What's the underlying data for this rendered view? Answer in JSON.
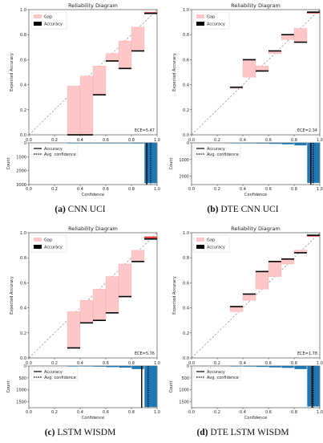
{
  "colors": {
    "gap": "#ffc7c7",
    "gap_edge": "#e99",
    "accuracy": "#000000",
    "count_bar": "#1f77b4",
    "over": "#e03c3c",
    "diag": "#777777"
  },
  "chart_data": [
    {
      "type": "bar",
      "caption_letter": "(a)",
      "caption_text": "CNN UCI",
      "title": "Reliability Diagram",
      "ylabel": "Expected Accuracy",
      "xlabel": "Confidence",
      "count_ylabel": "Count",
      "ece": "ECE=5.47",
      "xlim": [
        0,
        1
      ],
      "ylim": [
        0,
        1
      ],
      "xticks": [
        "0.0",
        "0.2",
        "0.4",
        "0.6",
        "0.8",
        "1.0"
      ],
      "yticks": [
        "0.0",
        "0.2",
        "0.4",
        "0.6",
        "0.8",
        "1.0"
      ],
      "count_ylim": [
        0,
        3000
      ],
      "count_yticks": [
        "0",
        "1000",
        "2000",
        "3000"
      ],
      "legend": [
        "Gap",
        "Accuracy"
      ],
      "count_legend": [
        "Accuracy",
        "Avg. confidence"
      ],
      "bins": [
        0.3,
        0.4,
        0.5,
        0.6,
        0.7,
        0.8,
        0.9
      ],
      "bin_accuracy": [
        0.0,
        0.0,
        0.32,
        0.59,
        0.53,
        0.67,
        0.97
      ],
      "bin_conf": [
        0.39,
        0.47,
        0.55,
        0.65,
        0.75,
        0.86,
        0.98
      ],
      "counts": [
        3,
        8,
        15,
        20,
        30,
        45,
        2900
      ],
      "mean_accuracy": 0.92,
      "mean_confidence": 0.95
    },
    {
      "type": "bar",
      "caption_letter": "(b)",
      "caption_text": "DTE CNN UCI",
      "title": "Reliability Diagram",
      "ylabel": "Expected Accuracy",
      "xlabel": "Confidence",
      "count_ylabel": "Count",
      "ece": "ECE=2.34",
      "xlim": [
        0,
        1
      ],
      "ylim": [
        0,
        1
      ],
      "xticks": [
        "0.0",
        "0.2",
        "0.4",
        "0.6",
        "0.8",
        "1.0"
      ],
      "yticks": [
        "0.0",
        "0.2",
        "0.4",
        "0.6",
        "0.8",
        "1.0"
      ],
      "count_ylim": [
        0,
        2500
      ],
      "count_yticks": [
        "0",
        "1000",
        "2000"
      ],
      "legend": [
        "Gap",
        "Accuracy"
      ],
      "count_legend": [
        "Accuracy",
        "Avg. confidence"
      ],
      "bins": [
        0.3,
        0.4,
        0.5,
        0.6,
        0.7,
        0.8,
        0.9
      ],
      "bin_accuracy": [
        0.38,
        0.6,
        0.51,
        0.67,
        0.8,
        0.74,
        0.98
      ],
      "bin_conf": [
        0.37,
        0.46,
        0.55,
        0.65,
        0.76,
        0.85,
        0.97
      ],
      "counts": [
        10,
        25,
        40,
        60,
        90,
        150,
        2400
      ],
      "mean_accuracy": 0.93,
      "mean_confidence": 0.95
    },
    {
      "type": "bar",
      "caption_letter": "(c)",
      "caption_text": "LSTM WISDM",
      "title": "Reliability Diagram",
      "ylabel": "Expected Accuracy",
      "xlabel": "Confidence",
      "count_ylabel": "Count",
      "ece": "ECE=5.76",
      "xlim": [
        0,
        1
      ],
      "ylim": [
        0,
        1
      ],
      "xticks": [
        "0.0",
        "0.2",
        "0.4",
        "0.6",
        "0.8",
        "1.0"
      ],
      "yticks": [
        "0.0",
        "0.2",
        "0.4",
        "0.6",
        "0.8",
        "1.0"
      ],
      "count_ylim": [
        0,
        1750
      ],
      "count_yticks": [
        "0",
        "500",
        "1000",
        "1500"
      ],
      "legend": [
        "Gap",
        "Accuracy"
      ],
      "count_legend": [
        "Accuracy",
        "Avg. confidence"
      ],
      "bins": [
        0.3,
        0.4,
        0.5,
        0.6,
        0.7,
        0.8,
        0.9
      ],
      "bin_accuracy": [
        0.08,
        0.28,
        0.3,
        0.36,
        0.49,
        0.77,
        0.95
      ],
      "bin_conf": [
        0.37,
        0.46,
        0.55,
        0.65,
        0.75,
        0.86,
        0.97
      ],
      "counts": [
        10,
        20,
        30,
        50,
        70,
        130,
        1720
      ],
      "mean_accuracy": 0.88,
      "mean_confidence": 0.93
    },
    {
      "type": "bar",
      "caption_letter": "(d)",
      "caption_text": "DTE LSTM WISDM",
      "title": "Reliability Diagram",
      "ylabel": "Expected Accuracy",
      "xlabel": "Confidence",
      "count_ylabel": "Count",
      "ece": "ECE=1.78",
      "xlim": [
        0,
        1
      ],
      "ylim": [
        0,
        1
      ],
      "xticks": [
        "0.0",
        "0.2",
        "0.4",
        "0.6",
        "0.8",
        "1.0"
      ],
      "yticks": [
        "0.0",
        "0.2",
        "0.4",
        "0.6",
        "0.8",
        "1.0"
      ],
      "count_ylim": [
        0,
        1750
      ],
      "count_yticks": [
        "0",
        "500",
        "1000",
        "1500"
      ],
      "legend": [
        "Gap",
        "Accuracy"
      ],
      "count_legend": [
        "Accuracy",
        "Avg. confidence"
      ],
      "bins": [
        0.3,
        0.4,
        0.5,
        0.6,
        0.7,
        0.8,
        0.9
      ],
      "bin_accuracy": [
        0.41,
        0.51,
        0.69,
        0.77,
        0.79,
        0.84,
        0.98
      ],
      "bin_conf": [
        0.37,
        0.46,
        0.55,
        0.65,
        0.75,
        0.86,
        0.97
      ],
      "counts": [
        10,
        25,
        40,
        60,
        80,
        130,
        1700
      ],
      "mean_accuracy": 0.94,
      "mean_confidence": 0.95
    }
  ]
}
